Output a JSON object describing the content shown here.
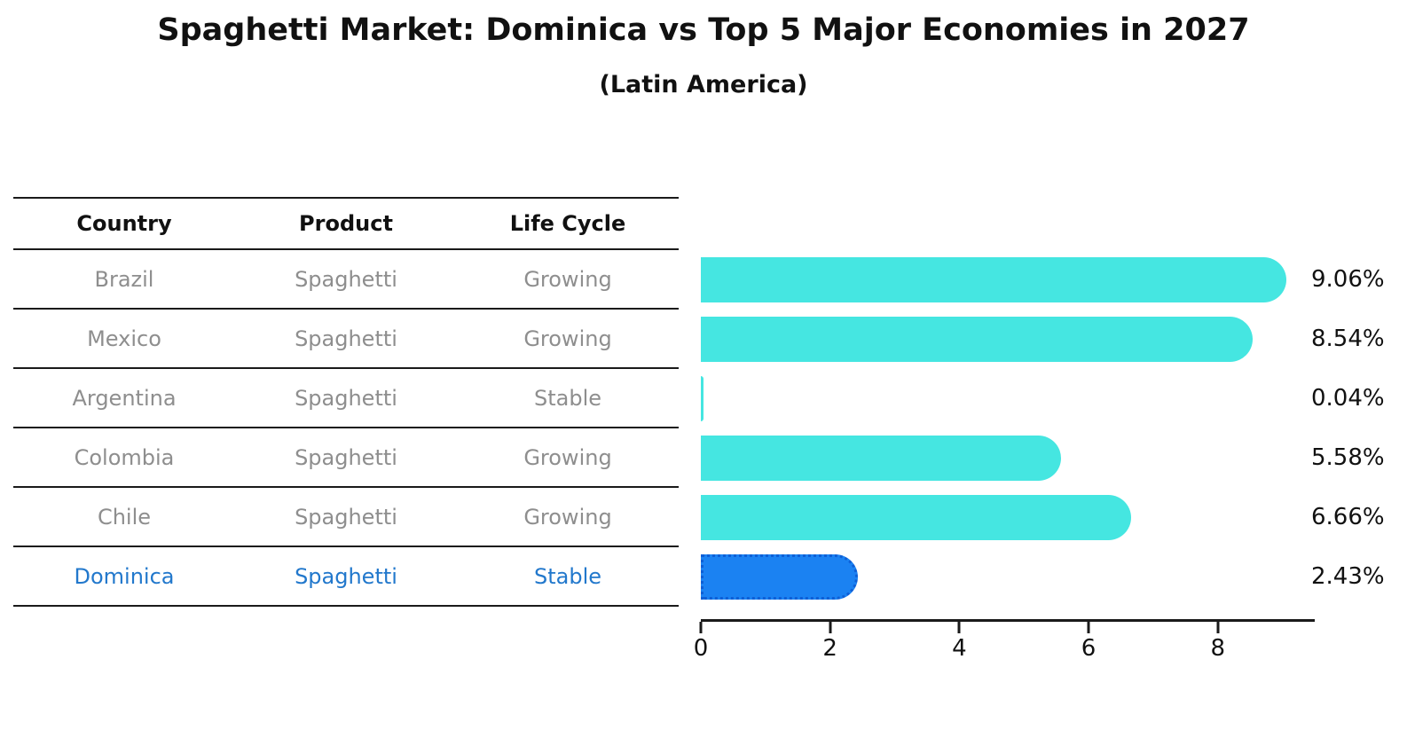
{
  "header": {
    "title": "Spaghetti Market: Dominica vs Top 5 Major Economies in 2027",
    "subtitle": "(Latin America)"
  },
  "table": {
    "columns": [
      "Country",
      "Product",
      "Life Cycle"
    ],
    "rows": [
      {
        "country": "Brazil",
        "product": "Spaghetti",
        "life_cycle": "Growing",
        "highlighted": false
      },
      {
        "country": "Mexico",
        "product": "Spaghetti",
        "life_cycle": "Growing",
        "highlighted": false
      },
      {
        "country": "Argentina",
        "product": "Spaghetti",
        "life_cycle": "Stable",
        "highlighted": false
      },
      {
        "country": "Colombia",
        "product": "Spaghetti",
        "life_cycle": "Growing",
        "highlighted": false
      },
      {
        "country": "Chile",
        "product": "Spaghetti",
        "life_cycle": "Growing",
        "highlighted": false
      },
      {
        "country": "Dominica",
        "product": "Spaghetti",
        "life_cycle": "Stable",
        "highlighted": true
      }
    ]
  },
  "chart_data": {
    "type": "bar",
    "orientation": "horizontal",
    "title": "Spaghetti Market: Dominica vs Top 5 Major Economies in 2027",
    "subtitle": "(Latin America)",
    "categories": [
      "Brazil",
      "Mexico",
      "Argentina",
      "Colombia",
      "Chile",
      "Dominica"
    ],
    "values": [
      9.06,
      8.54,
      0.04,
      5.58,
      6.66,
      2.43
    ],
    "value_labels": [
      "9.06%",
      "8.54%",
      "0.04%",
      "5.58%",
      "6.66%",
      "2.43%"
    ],
    "x_ticks": [
      0,
      2,
      4,
      6,
      8
    ],
    "xlim": [
      0,
      9.5
    ],
    "xlabel": "",
    "ylabel": "",
    "grid": false,
    "legend": false,
    "highlight_index": 5,
    "bar_color": "#45e6e1",
    "highlight_color": "#1b82f2",
    "highlight_border_color": "#0e5fd6",
    "highlight_text_color": "#2278cc",
    "text_color": "#111111",
    "muted_text_color": "#8e8e8e"
  }
}
